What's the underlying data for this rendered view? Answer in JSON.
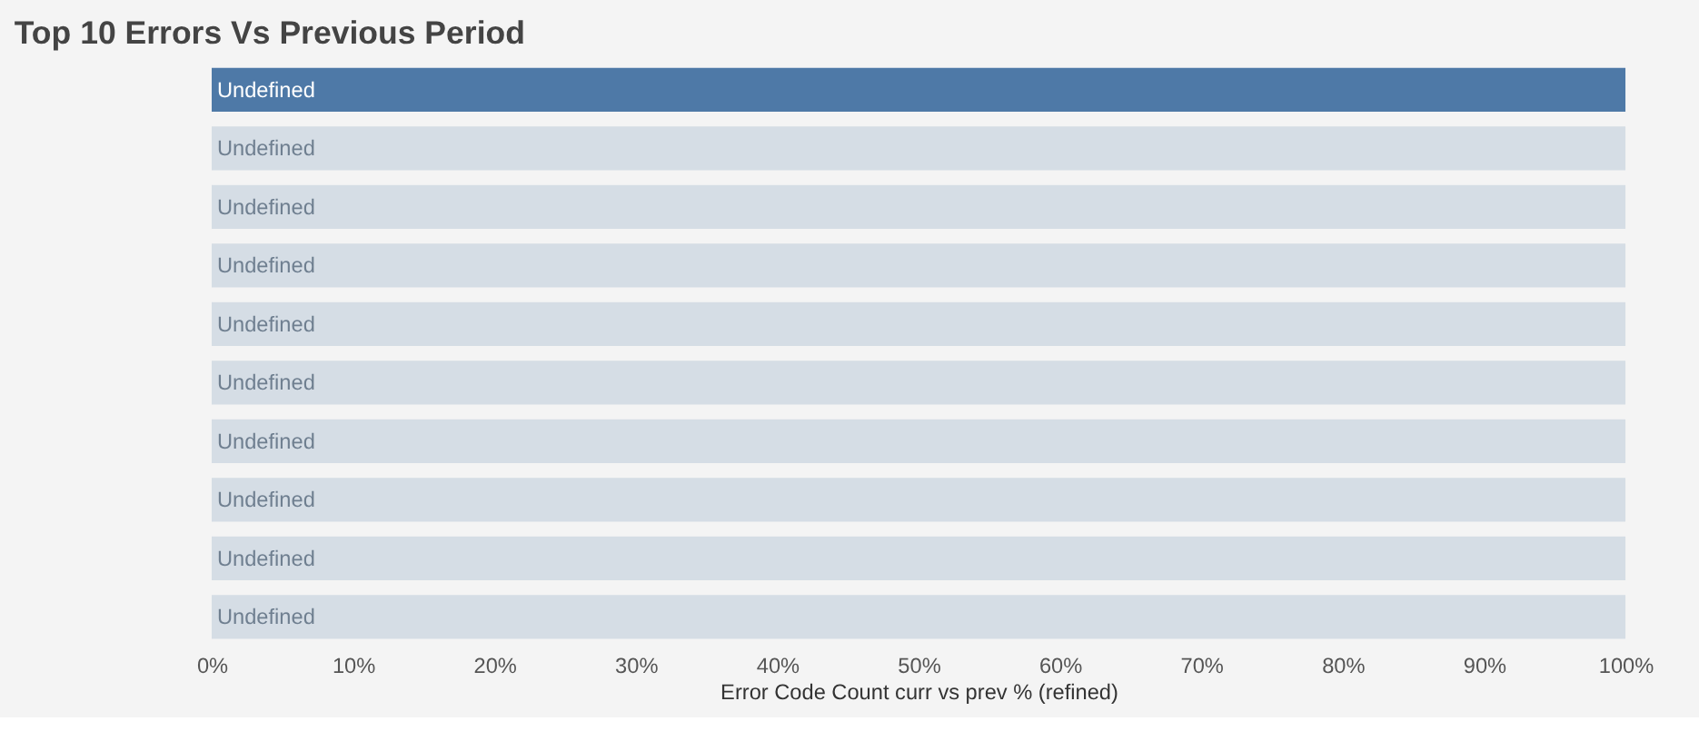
{
  "chart_data": {
    "type": "bar",
    "orientation": "horizontal",
    "title": "Top 10 Errors Vs Previous Period",
    "xlabel": "Error Code Count curr vs prev % (refined)",
    "categories": [
      null,
      null,
      null,
      null,
      null,
      null,
      null,
      null,
      null,
      null
    ],
    "values": [
      100,
      100,
      100,
      100,
      100,
      100,
      100,
      100,
      100,
      100
    ],
    "colors": [
      "#4e79a7",
      "#d5dde5",
      "#d5dde5",
      "#d5dde5",
      "#d5dde5",
      "#d5dde5",
      "#d5dde5",
      "#d5dde5",
      "#d5dde5",
      "#d5dde5"
    ],
    "value_labels": [
      "Undefined",
      "Undefined",
      "Undefined",
      "Undefined",
      "Undefined",
      "Undefined",
      "Undefined",
      "Undefined",
      "Undefined",
      "Undefined"
    ],
    "xlim": [
      0,
      100
    ],
    "xticks": [
      {
        "value": 0,
        "label": "0%"
      },
      {
        "value": 10,
        "label": "10%"
      },
      {
        "value": 20,
        "label": "20%"
      },
      {
        "value": 30,
        "label": "30%"
      },
      {
        "value": 40,
        "label": "40%"
      },
      {
        "value": 50,
        "label": "50%"
      },
      {
        "value": 60,
        "label": "60%"
      },
      {
        "value": 70,
        "label": "70%"
      },
      {
        "value": 80,
        "label": "80%"
      },
      {
        "value": 90,
        "label": "90%"
      },
      {
        "value": 100,
        "label": "100%"
      }
    ],
    "grid": false
  }
}
